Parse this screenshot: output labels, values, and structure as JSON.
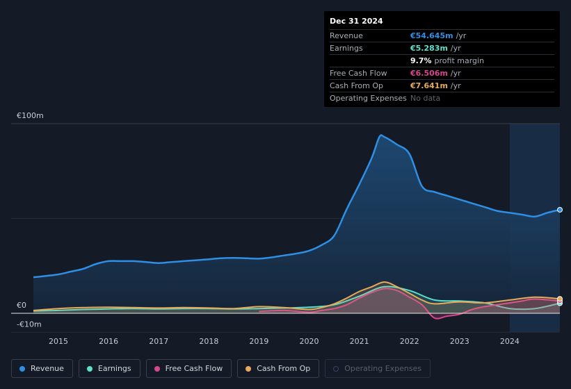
{
  "tooltip": {
    "date": "Dec 31 2024",
    "rows": [
      {
        "label": "Revenue",
        "value": "€54.645m",
        "unit": "/yr",
        "color": "#2e8fe5"
      },
      {
        "label": "Earnings",
        "value": "€5.283m",
        "unit": "/yr",
        "color": "#5be0cb"
      },
      {
        "label": "",
        "value": "9.7%",
        "unit": "profit margin",
        "color": "#ffffff"
      },
      {
        "label": "Free Cash Flow",
        "value": "€6.506m",
        "unit": "/yr",
        "color": "#d8468f"
      },
      {
        "label": "Cash From Op",
        "value": "€7.641m",
        "unit": "/yr",
        "color": "#e8a95a"
      },
      {
        "label": "Operating Expenses",
        "value": "No data",
        "unit": "",
        "color": "#5e636b"
      }
    ]
  },
  "legend": [
    {
      "label": "Revenue",
      "color": "#2e8fe5",
      "active": true
    },
    {
      "label": "Earnings",
      "color": "#5be0cb",
      "active": true
    },
    {
      "label": "Free Cash Flow",
      "color": "#d8468f",
      "active": true
    },
    {
      "label": "Cash From Op",
      "color": "#e8a95a",
      "active": true
    },
    {
      "label": "Operating Expenses",
      "color": "#3a3f6e",
      "active": false
    }
  ],
  "chart_data": {
    "type": "area",
    "title": "",
    "xlabel": "",
    "ylabel": "",
    "y_tick_labels": [
      {
        "value": 100,
        "label": "€100m"
      },
      {
        "value": 0,
        "label": "€0"
      },
      {
        "value": -10,
        "label": "-€10m"
      }
    ],
    "x_tick_labels": [
      "2015",
      "2016",
      "2017",
      "2018",
      "2019",
      "2020",
      "2021",
      "2022",
      "2023",
      "2024"
    ],
    "xlim": [
      2014.5,
      2025.0
    ],
    "ylim": [
      -10,
      100
    ],
    "grid": true,
    "highlight_from": 2024.0,
    "series": [
      {
        "name": "Revenue",
        "color": "#2e8fe5",
        "fill": true,
        "x": [
          2014.5,
          2014.75,
          2015.0,
          2015.25,
          2015.5,
          2015.75,
          2016.0,
          2016.25,
          2016.5,
          2016.75,
          2017.0,
          2017.25,
          2017.5,
          2017.75,
          2018.0,
          2018.25,
          2018.5,
          2018.75,
          2019.0,
          2019.25,
          2019.5,
          2019.75,
          2020.0,
          2020.25,
          2020.5,
          2020.75,
          2021.0,
          2021.25,
          2021.4,
          2021.5,
          2021.75,
          2022.0,
          2022.25,
          2022.5,
          2022.75,
          2023.0,
          2023.25,
          2023.5,
          2023.75,
          2024.0,
          2024.25,
          2024.5,
          2024.75,
          2025.0
        ],
        "y": [
          19,
          19.7,
          20.5,
          22,
          23.5,
          26,
          27.5,
          27.5,
          27.5,
          27,
          26.5,
          27,
          27.5,
          28,
          28.5,
          29,
          29.2,
          29,
          28.8,
          29.5,
          30.5,
          31.5,
          33,
          36,
          41,
          55,
          68,
          82,
          93,
          93,
          89,
          84,
          67,
          64,
          62,
          60,
          58,
          56,
          54,
          53,
          52,
          51,
          53,
          54.6
        ]
      },
      {
        "name": "Earnings",
        "color": "#5be0cb",
        "fill": true,
        "x": [
          2014.5,
          2015.0,
          2015.5,
          2016.0,
          2016.5,
          2017.0,
          2017.5,
          2018.0,
          2018.5,
          2019.0,
          2019.5,
          2020.0,
          2020.5,
          2021.0,
          2021.5,
          2022.0,
          2022.5,
          2023.0,
          2023.5,
          2024.0,
          2024.5,
          2025.0
        ],
        "y": [
          1.2,
          1.5,
          2,
          2.3,
          2.5,
          2.3,
          2.5,
          2.5,
          2.3,
          2.5,
          2.8,
          3.2,
          4.5,
          9,
          14,
          12,
          7,
          6.5,
          5.5,
          2.5,
          2.5,
          5.3
        ]
      },
      {
        "name": "Free Cash Flow",
        "color": "#d8468f",
        "fill": true,
        "x": [
          2019.0,
          2019.5,
          2020.0,
          2020.25,
          2020.5,
          2020.75,
          2021.0,
          2021.25,
          2021.5,
          2021.75,
          2022.0,
          2022.25,
          2022.5,
          2022.75,
          2023.0,
          2023.25,
          2023.5,
          2024.0,
          2024.25,
          2024.5,
          2025.0
        ],
        "y": [
          1,
          1.5,
          0.5,
          1.5,
          2.5,
          4.5,
          8,
          11,
          13,
          12,
          8.5,
          4.5,
          -2.5,
          -1.5,
          -0.5,
          2,
          3.5,
          5.5,
          6.5,
          7.5,
          6.5
        ]
      },
      {
        "name": "Cash From Op",
        "color": "#e8a95a",
        "fill": true,
        "x": [
          2014.5,
          2015.0,
          2015.5,
          2016.0,
          2016.5,
          2017.0,
          2017.5,
          2018.0,
          2018.5,
          2019.0,
          2019.5,
          2020.0,
          2020.25,
          2020.5,
          2020.75,
          2021.0,
          2021.25,
          2021.5,
          2021.75,
          2022.0,
          2022.25,
          2022.5,
          2023.0,
          2023.5,
          2024.0,
          2024.5,
          2025.0
        ],
        "y": [
          1.5,
          2.5,
          3,
          3.2,
          3,
          2.8,
          3,
          2.8,
          2.5,
          3.5,
          3,
          2,
          3,
          5,
          8,
          11.5,
          14,
          16.5,
          14,
          10.5,
          7,
          5,
          6,
          5.5,
          7,
          8.5,
          7.6
        ]
      }
    ]
  }
}
